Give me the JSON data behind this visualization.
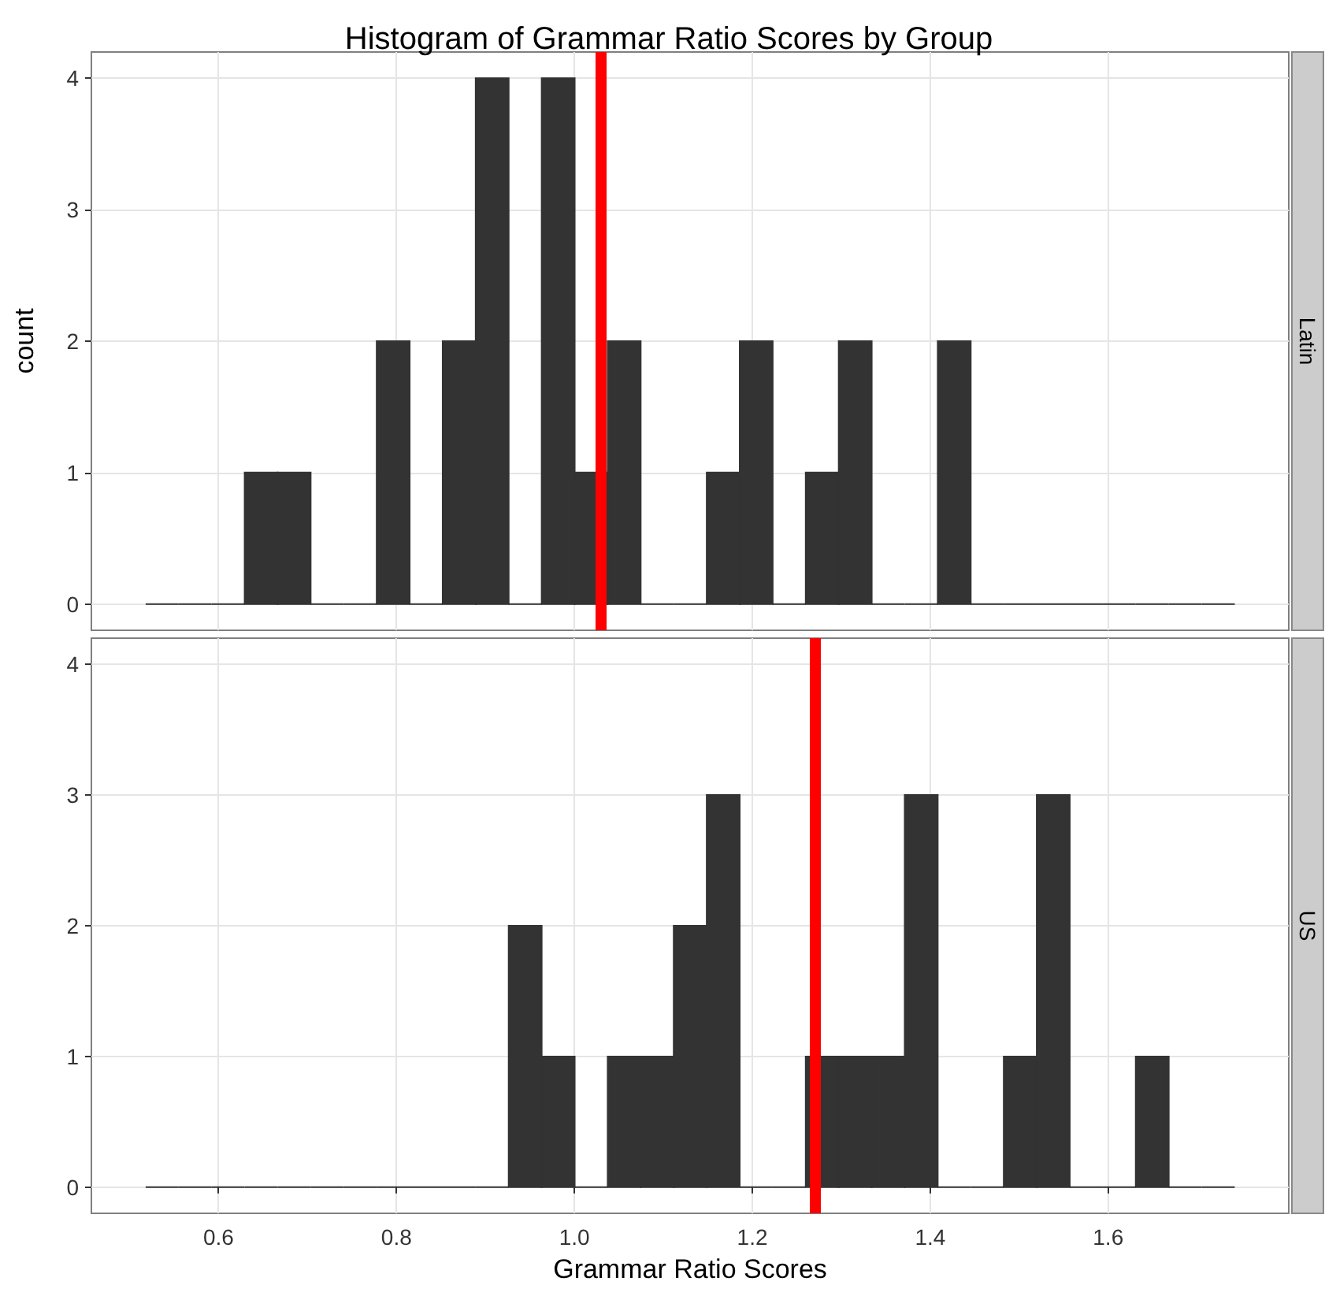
{
  "chart_data": [
    {
      "type": "histogram",
      "title": "Histogram of Grammar Ratio Scores by Group",
      "subtitle": "Latin",
      "ylabel": "count",
      "color": "#333333",
      "bins": [
        0.518,
        0.5551,
        0.5922,
        0.6293,
        0.6664,
        0.7035,
        0.7406,
        0.7777,
        0.8148,
        0.8519,
        0.889,
        0.9261,
        0.9632,
        1.0003,
        1.0374,
        1.0745,
        1.1116,
        1.1487,
        1.1858,
        1.2229,
        1.26,
        1.2971,
        1.3342,
        1.3713,
        1.4084,
        1.4455,
        1.4826,
        1.5197,
        1.5568,
        1.5939,
        1.631,
        1.6681,
        1.7052,
        1.7423
      ],
      "values": [
        0,
        0,
        0,
        1,
        1,
        0,
        0,
        2,
        0,
        2,
        4,
        0,
        4,
        1,
        2,
        0,
        0,
        1,
        2,
        0,
        1,
        2,
        0,
        0,
        2,
        0,
        0,
        0,
        0,
        0,
        0,
        0,
        0
      ],
      "xlim": [
        0.457,
        1.803
      ],
      "xticks": [
        0.6,
        0.8,
        1,
        1.2,
        1.4,
        1.6
      ],
      "ylim": [
        -0.2,
        4.2
      ],
      "yticks": [
        0,
        1,
        2,
        3,
        4
      ],
      "grid": true,
      "tick_labels": "y",
      "ref_lines": [
        {
          "axis": "x",
          "value": 1.026,
          "color": "#ff0000"
        }
      ]
    },
    {
      "type": "histogram",
      "subtitle": "US",
      "xlabel": "Grammar Ratio Scores",
      "color": "#333333",
      "bins": [
        0.518,
        0.5551,
        0.5922,
        0.6293,
        0.6664,
        0.7035,
        0.7406,
        0.7777,
        0.8148,
        0.8519,
        0.889,
        0.9261,
        0.9632,
        1.0003,
        1.0374,
        1.0745,
        1.1116,
        1.1487,
        1.1858,
        1.2229,
        1.26,
        1.2971,
        1.3342,
        1.3713,
        1.4084,
        1.4455,
        1.4826,
        1.5197,
        1.5568,
        1.5939,
        1.631,
        1.6681,
        1.7052,
        1.7423
      ],
      "values": [
        0,
        0,
        0,
        0,
        0,
        0,
        0,
        0,
        0,
        0,
        0,
        2,
        1,
        0,
        1,
        1,
        2,
        3,
        0,
        0,
        1,
        1,
        1,
        3,
        0,
        0,
        1,
        3,
        0,
        0,
        1,
        0,
        0
      ],
      "xlim": [
        0.457,
        1.803
      ],
      "xticks": [
        0.6,
        0.8,
        {
          "value": 1,
          "label": "1.0"
        },
        1.2,
        1.4,
        1.6
      ],
      "ylim": [
        -0.2,
        4.2
      ],
      "yticks": [
        0,
        1,
        2,
        3,
        4
      ],
      "grid": true,
      "ref_lines": [
        {
          "axis": "x",
          "value": 1.27,
          "color": "#ff0000"
        }
      ]
    }
  ]
}
